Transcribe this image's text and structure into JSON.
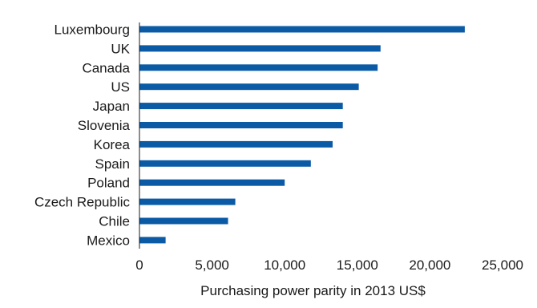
{
  "chart_data": {
    "type": "bar",
    "orientation": "horizontal",
    "title": "",
    "xlabel": "Purchasing power parity in 2013 US$",
    "ylabel": "",
    "xlim": [
      0,
      25000
    ],
    "x_ticks": [
      {
        "value": 0,
        "label": "0"
      },
      {
        "value": 5000,
        "label": "5,000"
      },
      {
        "value": 10000,
        "label": "10,000"
      },
      {
        "value": 15000,
        "label": "15,000"
      },
      {
        "value": 20000,
        "label": "20,000"
      },
      {
        "value": 25000,
        "label": "25,000"
      }
    ],
    "grid": false,
    "legend": "none",
    "bar_color": "#0a5aa6",
    "categories": [
      "Luxembourg",
      "UK",
      "Canada",
      "US",
      "Japan",
      "Slovenia",
      "Korea",
      "Spain",
      "Poland",
      "Czech Republic",
      "Chile",
      "Mexico"
    ],
    "values": [
      22400,
      16600,
      16400,
      15100,
      14000,
      14000,
      13300,
      11800,
      10000,
      6600,
      6100,
      1800
    ]
  }
}
